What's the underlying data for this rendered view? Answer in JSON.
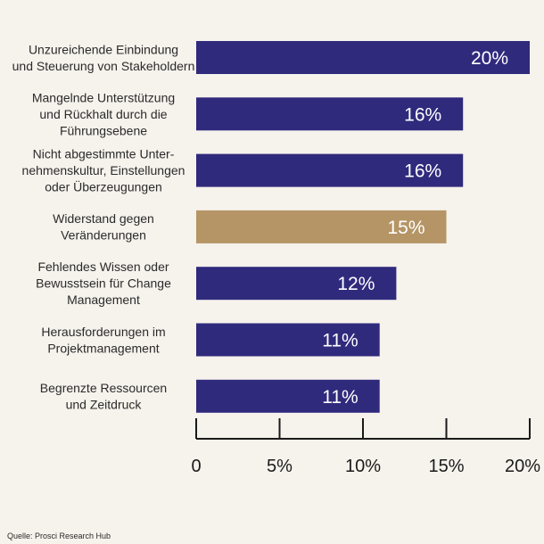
{
  "chart_data": {
    "type": "bar",
    "orientation": "horizontal",
    "categories": [
      [
        "Unzureichende Einbindung",
        "und Steuerung von Stakeholdern"
      ],
      [
        "Mangelnde Unterstützung",
        "und Rückhalt durch die",
        "Führungsebene"
      ],
      [
        "Nicht abgestimmte Unter-",
        "nehmenskultur, Einstellungen",
        "oder Überzeugungen"
      ],
      [
        "Widerstand gegen",
        "Veränderungen"
      ],
      [
        "Fehlendes Wissen oder",
        "Bewusstsein für Change",
        "Management"
      ],
      [
        "Herausforderungen im",
        "Projektmanagement"
      ],
      [
        "Begrenzte Ressourcen",
        "und Zeitdruck"
      ]
    ],
    "values": [
      20,
      16,
      16,
      15,
      12,
      11,
      11
    ],
    "value_labels": [
      "20%",
      "16%",
      "16%",
      "15%",
      "12%",
      "11%",
      "11%"
    ],
    "highlight_index": 3,
    "xlim": [
      0,
      20
    ],
    "xticks": [
      0,
      5,
      10,
      15,
      20
    ],
    "xtick_labels": [
      "0",
      "5%",
      "10%",
      "15%",
      "20%"
    ],
    "title": "",
    "xlabel": "",
    "ylabel": ""
  },
  "colors": {
    "bar": "#302a7d",
    "highlight": "#b59566",
    "axis": "#1a1a1a",
    "background": "#f6f2ec"
  },
  "source": "Quelle: Prosci Research Hub"
}
